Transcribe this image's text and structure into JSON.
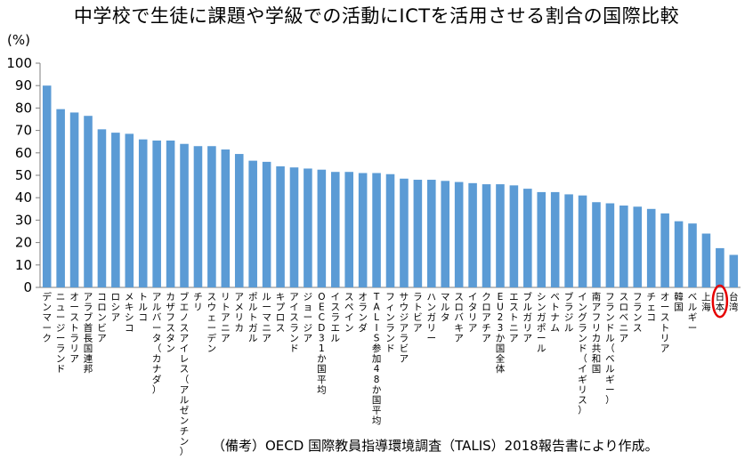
{
  "chart_data": {
    "type": "bar",
    "title": "中学校で生徒に課題や学級での活動にICTを活用させる割合の国際比較",
    "ylabel": "(%)",
    "xlabel": "",
    "ylim": [
      0,
      100
    ],
    "yticks": [
      0,
      10,
      20,
      30,
      40,
      50,
      60,
      70,
      80,
      90,
      100
    ],
    "grid": false,
    "bar_color": "#5b9bd5",
    "highlight_color": "#e60000",
    "highlight_category": "日本",
    "categories": [
      "デンマーク",
      "ニュージーランド",
      "オーストラリア",
      "アラブ首長国連邦",
      "コロンビア",
      "ロシア",
      "メキシコ",
      "トルコ",
      "アルバータ（カナダ）",
      "カザフスタン",
      "ブエノスアイレス（アルゼンチン）",
      "チリ",
      "スウェーデン",
      "リトアニア",
      "アメリカ",
      "ポルトガル",
      "ルーマニア",
      "キプロス",
      "アイスランド",
      "ジョージア",
      "OECD31か国平均",
      "イスラエル",
      "スペイン",
      "オランダ",
      "TALIS参加48か国平均",
      "フィンランド",
      "サウジアラビア",
      "ラトビア",
      "ハンガリー",
      "マルタ",
      "スロバキア",
      "イタリア",
      "クロアチア",
      "EU23か国全体",
      "エストニア",
      "ブルガリア",
      "シンガポール",
      "ベトナム",
      "ブラジル",
      "イングランド（イギリス）",
      "南アフリカ共和国",
      "フランドル（ベルギー）",
      "スロベニア",
      "フランス",
      "チェコ",
      "オーストリア",
      "韓国",
      "ベルギー",
      "上海",
      "日本",
      "台湾"
    ],
    "values": [
      90.0,
      79.5,
      78.0,
      76.5,
      70.5,
      69.0,
      68.5,
      66.0,
      65.5,
      65.5,
      64.0,
      63.0,
      63.0,
      61.5,
      59.5,
      56.5,
      56.0,
      54.0,
      53.5,
      53.0,
      52.5,
      51.5,
      51.5,
      51.0,
      51.0,
      50.5,
      48.5,
      48.0,
      48.0,
      47.5,
      47.0,
      46.5,
      46.0,
      46.0,
      45.5,
      44.0,
      42.5,
      42.5,
      41.5,
      41.0,
      38.0,
      37.5,
      36.5,
      36.0,
      35.0,
      33.0,
      29.5,
      28.5,
      24.0,
      17.5,
      14.5
    ]
  },
  "note": "（備考）OECD 国際教員指導環境調査（TALIS）2018報告書により作成。"
}
